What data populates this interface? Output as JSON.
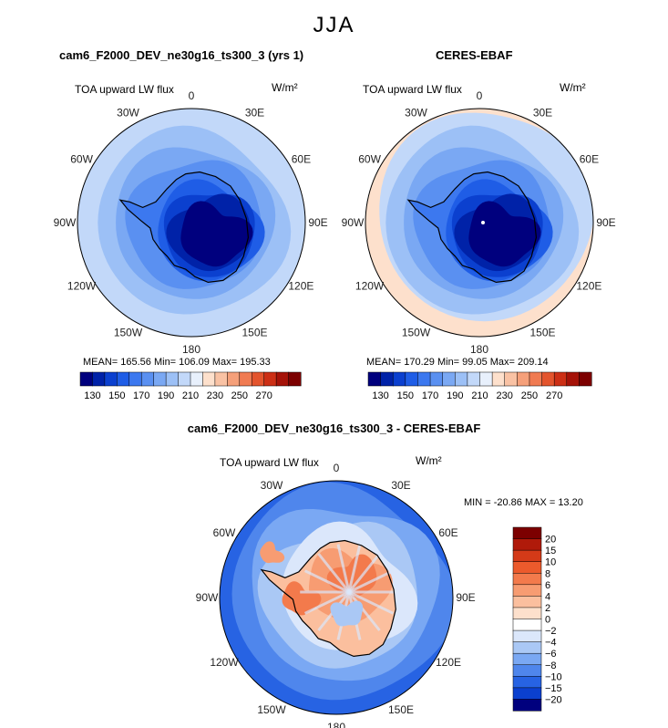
{
  "figure": {
    "season": "JJA",
    "units": "W/m²",
    "variable": "TOA upward LW flux"
  },
  "panels": [
    {
      "title": "cam6_F2000_DEV_ne30g16_ts300_3 (yrs 1)",
      "subtitle": "TOA upward LW flux",
      "units": "W/m²",
      "stats": "MEAN= 165.56   Min= 106.09   Max= 195.33",
      "colorbar_ticks": [
        "130",
        "150",
        "170",
        "190",
        "210",
        "230",
        "250",
        "270"
      ],
      "colors": [
        "#00007e",
        "#0022a8",
        "#0b40cf",
        "#1f5de6",
        "#3c78ef",
        "#5a90f1",
        "#7aa8f3",
        "#9cc0f6",
        "#c2d8f9",
        "#e8f0fc",
        "#fde0cc",
        "#f9c2a4",
        "#f5a07a",
        "#f07b52",
        "#e3542d",
        "#cc2f15",
        "#a51208",
        "#7c0000"
      ]
    },
    {
      "title": "CERES-EBAF",
      "subtitle": "TOA upward LW flux",
      "units": "W/m²",
      "stats": "MEAN= 170.29   Min= 99.05   Max= 209.14",
      "colorbar_ticks": [
        "130",
        "150",
        "170",
        "190",
        "210",
        "230",
        "250",
        "270"
      ],
      "colors": [
        "#00007e",
        "#0022a8",
        "#0b40cf",
        "#1f5de6",
        "#3c78ef",
        "#5a90f1",
        "#7aa8f3",
        "#9cc0f6",
        "#c2d8f9",
        "#e8f0fc",
        "#fde0cc",
        "#f9c2a4",
        "#f5a07a",
        "#f07b52",
        "#e3542d",
        "#cc2f15",
        "#a51208",
        "#7c0000"
      ]
    },
    {
      "title": "cam6_F2000_DEV_ne30g16_ts300_3 - CERES-EBAF",
      "subtitle": "TOA upward LW flux",
      "units": "W/m²",
      "stats": "MIN = -20.86 MAX =   13.20",
      "colorbar_ticks": [
        "20",
        "15",
        "10",
        "8",
        "6",
        "4",
        "2",
        "0",
        "−2",
        "−4",
        "−6",
        "−8",
        "−10",
        "−15",
        "−20"
      ],
      "colors": [
        "#7c0000",
        "#b01a0a",
        "#d43a18",
        "#ec5a2c",
        "#f37a4c",
        "#f79c72",
        "#fbbf9e",
        "#fde0cc",
        "#ffffff",
        "#dbe7fb",
        "#aac8f5",
        "#7aa8f3",
        "#4f86ec",
        "#2763e3",
        "#0b40cf",
        "#00007e"
      ]
    }
  ],
  "lon_labels": [
    "0",
    "30E",
    "60E",
    "90E",
    "120E",
    "150E",
    "180",
    "150W",
    "120W",
    "90W",
    "60W",
    "30W"
  ],
  "chart_data": [
    {
      "type": "heatmap",
      "projection": "south polar stereographic",
      "title": "cam6_F2000_DEV_ne30g16_ts300_3 (yrs 1)",
      "variable": "TOA upward LW flux",
      "units": "W/m²",
      "mean": 165.56,
      "min": 106.09,
      "max": 195.33,
      "contour_levels": [
        130,
        140,
        150,
        160,
        170,
        180,
        190,
        200,
        210,
        220,
        230,
        240,
        250,
        260,
        270
      ],
      "range": [
        120,
        280
      ]
    },
    {
      "type": "heatmap",
      "projection": "south polar stereographic",
      "title": "CERES-EBAF",
      "variable": "TOA upward LW flux",
      "units": "W/m²",
      "mean": 170.29,
      "min": 99.05,
      "max": 209.14,
      "contour_levels": [
        130,
        140,
        150,
        160,
        170,
        180,
        190,
        200,
        210,
        220,
        230,
        240,
        250,
        260,
        270
      ],
      "range": [
        120,
        280
      ]
    },
    {
      "type": "heatmap",
      "projection": "south polar stereographic",
      "title": "cam6_F2000_DEV_ne30g16_ts300_3 - CERES-EBAF",
      "variable": "TOA upward LW flux",
      "units": "W/m²",
      "min": -20.86,
      "max": 13.2,
      "contour_levels": [
        -20,
        -15,
        -10,
        -8,
        -6,
        -4,
        -2,
        0,
        2,
        4,
        6,
        8,
        10,
        15,
        20
      ]
    }
  ]
}
